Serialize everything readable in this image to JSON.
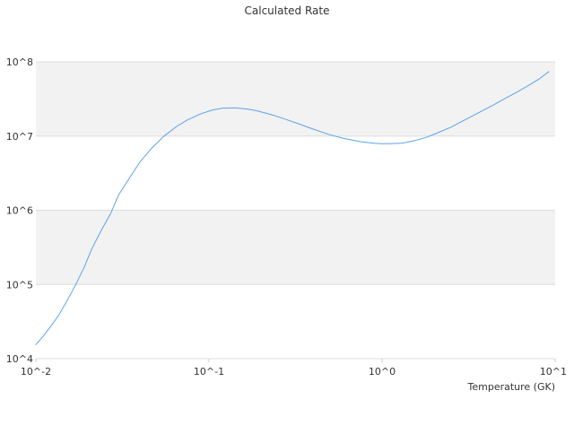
{
  "chart_data": {
    "type": "line",
    "title": "Calculated Rate",
    "xlabel": "Temperature (GK)",
    "ylabel": "",
    "x_scale": "log",
    "y_scale": "log",
    "xlim": [
      0.01,
      10
    ],
    "ylim": [
      10000,
      100000000
    ],
    "x_tick_values": [
      0.01,
      0.1,
      1,
      10
    ],
    "x_tick_labels": [
      "10^-2",
      "10^-1",
      "10^0",
      "10^1"
    ],
    "y_tick_values": [
      10000,
      100000,
      1000000,
      10000000,
      100000000
    ],
    "y_tick_labels": [
      "10^4",
      "10^5",
      "10^6",
      "10^7",
      "10^8"
    ],
    "grid": "horizontal",
    "band_colors": [
      "#f2f2f2",
      "#ffffff"
    ],
    "line_color": "#5ba3e8",
    "series": [
      {
        "x": [
          0.01,
          0.011,
          0.012,
          0.0135,
          0.015,
          0.017,
          0.019,
          0.021,
          0.024,
          0.027,
          0.03,
          0.035,
          0.04,
          0.047,
          0.055,
          0.065,
          0.075,
          0.09,
          0.105,
          0.12,
          0.14,
          0.165,
          0.19,
          0.23,
          0.27,
          0.33,
          0.4,
          0.5,
          0.6,
          0.75,
          0.9,
          1.0,
          1.1,
          1.3,
          1.55,
          1.8,
          2.1,
          2.5,
          3.0,
          3.6,
          4.3,
          5.0,
          6.0,
          7.0,
          8.0,
          9.2
        ],
        "y": [
          15500,
          20000,
          26000,
          38000,
          58000,
          100000,
          170000,
          300000,
          550000,
          900000,
          1600000,
          2800000,
          4500000,
          7000000,
          10000000,
          13500000,
          16500000,
          20000000,
          22500000,
          23800000,
          24000000,
          23200000,
          21900000,
          19400000,
          17200000,
          14600000,
          12400000,
          10400000,
          9300000,
          8400000,
          8000000,
          7900000,
          7900000,
          8000000,
          8700000,
          9600000,
          11100000,
          13200000,
          16500000,
          20600000,
          25500000,
          31000000,
          39000000,
          48000000,
          58000000,
          74000000
        ]
      }
    ]
  }
}
